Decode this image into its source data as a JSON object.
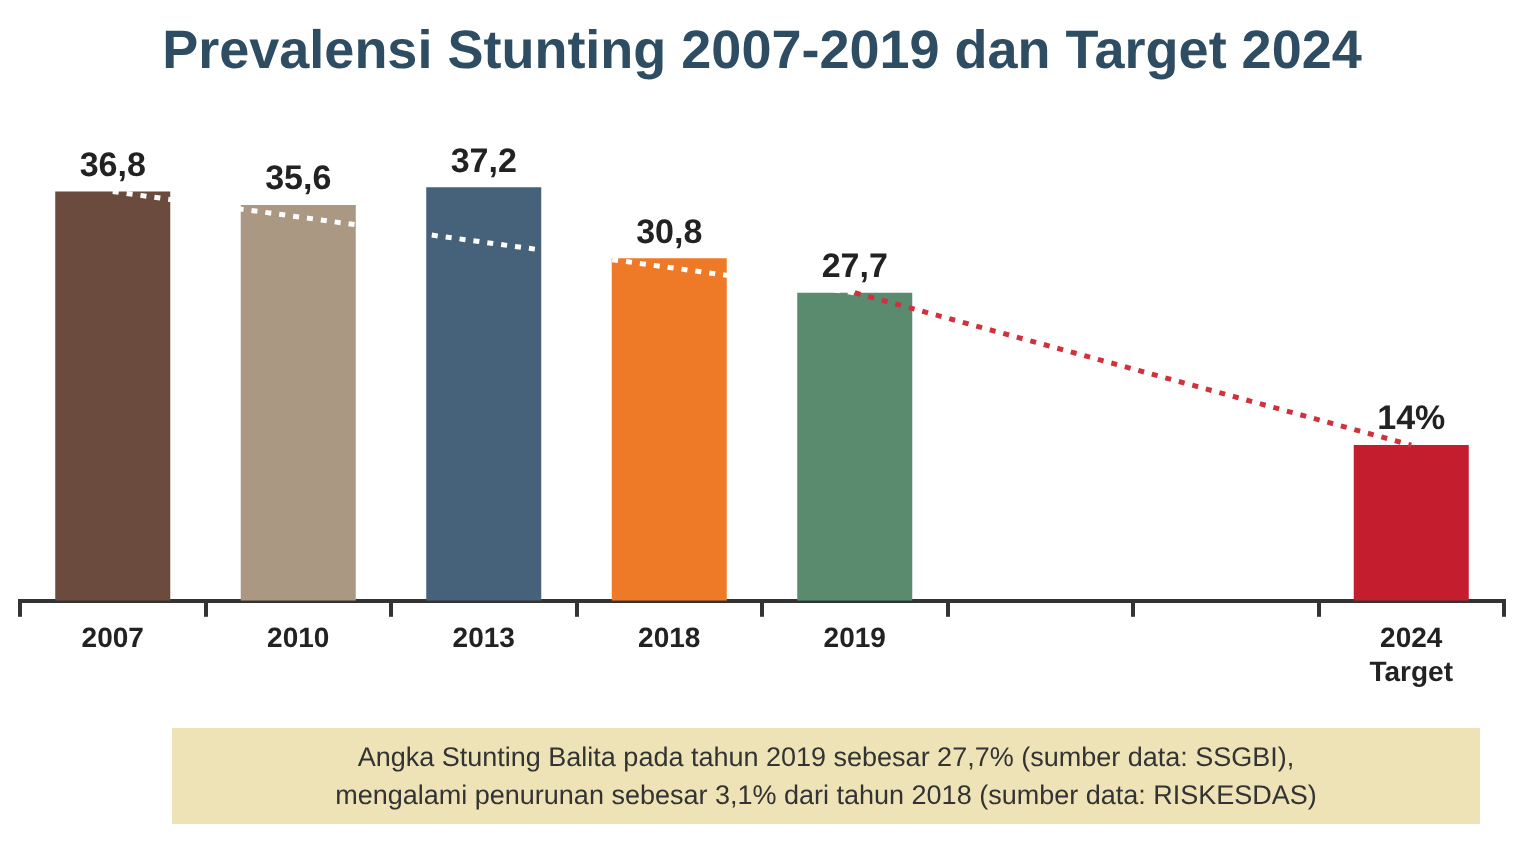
{
  "chart_data": {
    "type": "bar",
    "title": "Prevalensi Stunting 2007-2019 dan Target 2024",
    "categories": [
      "2007",
      "2010",
      "2013",
      "2018",
      "2019",
      null,
      null,
      "2024\nTarget"
    ],
    "series": [
      {
        "values": [
          36.8,
          35.6,
          37.2,
          30.8,
          27.7,
          null,
          null,
          14
        ],
        "colors": [
          "#6b4b3e",
          "#ab9883",
          "#45627a",
          "#ee7a27",
          "#5a8b6f",
          null,
          null,
          "#c41e2e"
        ],
        "value_labels": [
          "36,8",
          "35,6",
          "37,2",
          "30,8",
          "27,7",
          null,
          null,
          "14%"
        ]
      },
      {
        "type": "line",
        "color": "#ffffff",
        "values": [
          36.8,
          null,
          null,
          null,
          27.7,
          null,
          null,
          null
        ],
        "line_style": "dotted"
      },
      {
        "type": "line",
        "color": "#d0313f",
        "values": [
          null,
          null,
          null,
          null,
          27.7,
          null,
          null,
          14
        ],
        "line_style": "dotted"
      }
    ],
    "tick_labels": "x",
    "grid": false,
    "legend": false,
    "marker": "none",
    "annotations": [
      "Angka Stunting Balita pada tahun 2019 sebesar 27,7% (sumber data: SSGBI),",
      "mengalami penurunan sebesar 3,1% dari tahun 2018 (sumber data: RISKESDAS)"
    ]
  }
}
